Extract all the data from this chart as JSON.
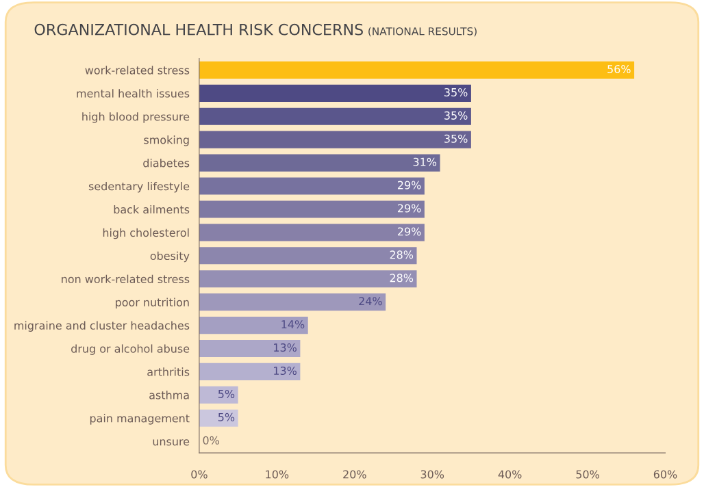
{
  "chart_data": {
    "type": "bar",
    "orientation": "horizontal",
    "title": "ORGANIZATIONAL HEALTH RISK CONCERNS",
    "subtitle": "(NATIONAL RESULTS)",
    "categories": [
      "work-related stress",
      "mental health issues",
      "high blood pressure",
      "smoking",
      "diabetes",
      "sedentary lifestyle",
      "back ailments",
      "high cholesterol",
      "obesity",
      "non work-related stress",
      "poor nutrition",
      "migraine and cluster headaches",
      "drug or alcohol abuse",
      "arthritis",
      "asthma",
      "pain management",
      "unsure"
    ],
    "values": [
      56,
      35,
      35,
      35,
      31,
      29,
      29,
      29,
      28,
      28,
      24,
      14,
      13,
      13,
      5,
      5,
      0
    ],
    "value_labels": [
      "56%",
      "35%",
      "35%",
      "35%",
      "31%",
      "29%",
      "29%",
      "29%",
      "28%",
      "28%",
      "24%",
      "14%",
      "13%",
      "13%",
      "5%",
      "5%",
      "0%"
    ],
    "colors": [
      "#fdbe14",
      "#4e4a84",
      "#5a568c",
      "#696393",
      "#6e6a97",
      "#77729f",
      "#7f79a3",
      "#8780a8",
      "#8c86ad",
      "#958fb4",
      "#9e98bb",
      "#a49fc2",
      "#aca7c8",
      "#b4b0cf",
      "#beb9d6",
      "#cbc7de",
      "#d6d3e6"
    ],
    "xlim": [
      0,
      60
    ],
    "xticks": [
      {
        "value": 0,
        "label": "0%"
      },
      {
        "value": 10,
        "label": "10%"
      },
      {
        "value": 20,
        "label": "20%"
      },
      {
        "value": 30,
        "label": "30%"
      },
      {
        "value": 40,
        "label": "40%"
      },
      {
        "value": 50,
        "label": "50%"
      },
      {
        "value": 60,
        "label": "60%"
      }
    ],
    "grid": false,
    "legend": false
  }
}
